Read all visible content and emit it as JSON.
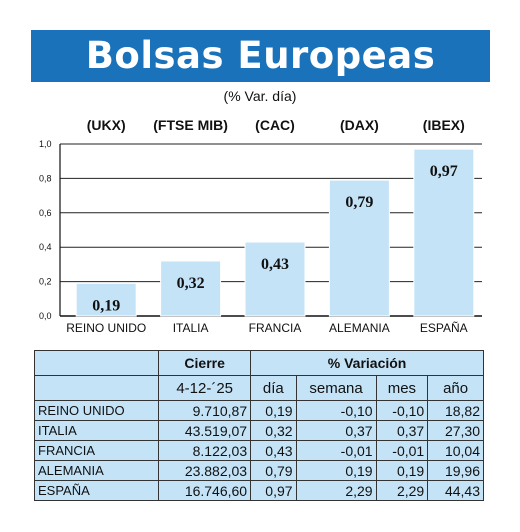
{
  "header": {
    "title": "Bolsas Europeas",
    "subtitle": "(% Var. día)"
  },
  "chart_data": {
    "type": "bar",
    "title": "Bolsas Europeas",
    "subtitle": "(% Var. día)",
    "codes": [
      "(UKX)",
      "(FTSE MIB)",
      "(CAC)",
      "(DAX)",
      "(IBEX)"
    ],
    "categories": [
      "REINO UNIDO",
      "ITALIA",
      "FRANCIA",
      "ALEMANIA",
      "ESPAÑA"
    ],
    "values": [
      0.19,
      0.32,
      0.43,
      0.79,
      0.97
    ],
    "value_labels": [
      "0,19",
      "0,32",
      "0,43",
      "0,79",
      "0,97"
    ],
    "ylim": [
      0,
      1.0
    ],
    "yticks": [
      0,
      0.2,
      0.4,
      0.6,
      0.8,
      1.0
    ],
    "ytick_labels": [
      "0,0",
      "0,2",
      "0,4",
      "0,6",
      "0,8",
      "1,0"
    ],
    "grid": true,
    "bar_color": "#c4e3f7"
  },
  "table": {
    "header_cierre": "Cierre",
    "header_variacion": "% Variación",
    "date": "4-12-´25",
    "col_dia": "día",
    "col_semana": "semana",
    "col_mes": "mes",
    "col_anio": "año",
    "rows": [
      {
        "name": "REINO UNIDO",
        "cierre": "9.710,87",
        "dia": "0,19",
        "semana": "-0,10",
        "mes": "-0,10",
        "anio": "18,82"
      },
      {
        "name": "ITALIA",
        "cierre": "43.519,07",
        "dia": "0,32",
        "semana": "0,37",
        "mes": "0,37",
        "anio": "27,30"
      },
      {
        "name": "FRANCIA",
        "cierre": "8.122,03",
        "dia": "0,43",
        "semana": "-0,01",
        "mes": "-0,01",
        "anio": "10,04"
      },
      {
        "name": "ALEMANIA",
        "cierre": "23.882,03",
        "dia": "0,79",
        "semana": "0,19",
        "mes": "0,19",
        "anio": "19,96"
      },
      {
        "name": "ESPAÑA",
        "cierre": "16.746,60",
        "dia": "0,97",
        "semana": "2,29",
        "mes": "2,29",
        "anio": "44,43"
      }
    ]
  },
  "colors": {
    "banner": "#1a73ba",
    "banner_text": "#ffffff",
    "table_bg": "#c4e3f7"
  }
}
